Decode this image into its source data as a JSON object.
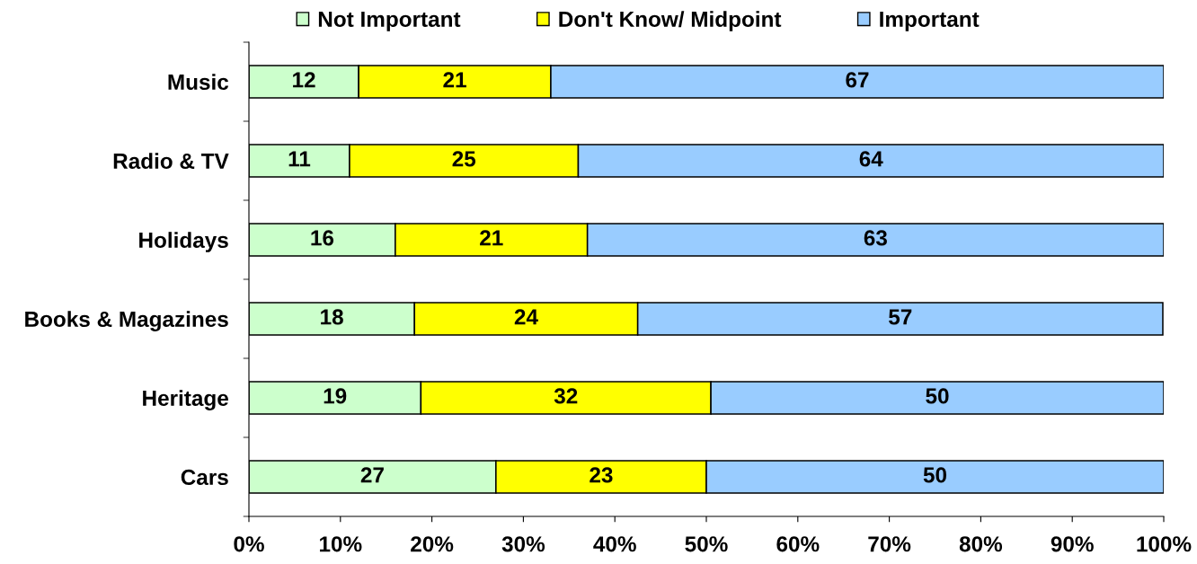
{
  "chart_data": {
    "type": "bar",
    "orientation": "horizontal",
    "stacked": true,
    "categories": [
      "Music",
      "Radio & TV",
      "Holidays",
      "Books & Magazines",
      "Heritage",
      "Cars"
    ],
    "series": [
      {
        "name": "Not Important",
        "color": "#ccffcc",
        "values": [
          12,
          11,
          16,
          18.1,
          18.8,
          27
        ],
        "value_labels": [
          "12",
          "11",
          "16",
          "18",
          "19",
          "27"
        ]
      },
      {
        "name": "Don't Know/ Midpoint",
        "color": "#ffff00",
        "values": [
          21,
          25,
          21,
          24.4,
          31.7,
          23
        ],
        "value_labels": [
          "21",
          "25",
          "21",
          "24",
          "32",
          "23"
        ]
      },
      {
        "name": "Important",
        "color": "#99ccff",
        "values": [
          67,
          64,
          63,
          57.4,
          49.5,
          50
        ],
        "value_labels": [
          "67",
          "64",
          "63",
          "57",
          "50",
          "50"
        ]
      }
    ],
    "xlim": [
      0,
      100
    ],
    "xticks": [
      {
        "value": 0,
        "label": "0%"
      },
      {
        "value": 10,
        "label": "10%"
      },
      {
        "value": 20,
        "label": "20%"
      },
      {
        "value": 30,
        "label": "30%"
      },
      {
        "value": 40,
        "label": "40%"
      },
      {
        "value": 50,
        "label": "50%"
      },
      {
        "value": 60,
        "label": "60%"
      },
      {
        "value": 70,
        "label": "70%"
      },
      {
        "value": 80,
        "label": "80%"
      },
      {
        "value": 90,
        "label": "90%"
      },
      {
        "value": 100,
        "label": "100%"
      }
    ],
    "legend": "top",
    "grid": false
  }
}
